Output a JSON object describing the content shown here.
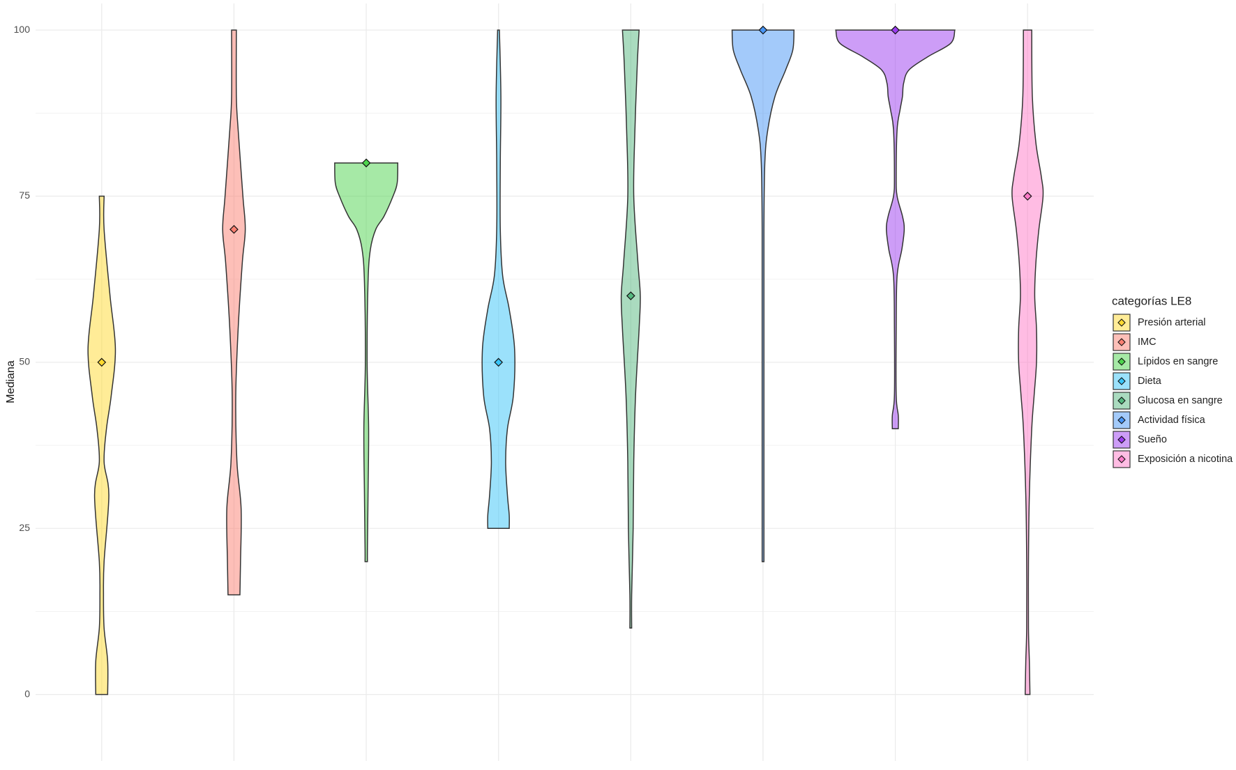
{
  "chart_data": {
    "type": "violin",
    "y_label": "Mediana",
    "legend_title": "categorías LE8",
    "legend_position": "right",
    "grid": true,
    "ylim": [
      -10,
      104
    ],
    "yticks": [
      0,
      25,
      50,
      75,
      100
    ],
    "yminor": [
      12.5,
      37.5,
      62.5,
      87.5
    ],
    "series": [
      {
        "name": "Presión arterial",
        "color": "#ffd92f",
        "median": 50,
        "density": {
          "y": [
            0,
            5,
            10,
            15,
            20,
            30,
            35,
            40,
            45,
            52,
            60,
            70,
            75
          ],
          "width": [
            0.1,
            0.1,
            0.04,
            0.03,
            0.04,
            0.12,
            0.04,
            0.08,
            0.16,
            0.23,
            0.14,
            0.04,
            0.04
          ]
        }
      },
      {
        "name": "IMC",
        "color": "#fb8072",
        "median": 70,
        "density": {
          "y": [
            15,
            20,
            28,
            35,
            45,
            55,
            65,
            70,
            75,
            85,
            90,
            100
          ],
          "width": [
            0.1,
            0.11,
            0.12,
            0.05,
            0.03,
            0.07,
            0.14,
            0.19,
            0.15,
            0.07,
            0.04,
            0.04
          ]
        }
      },
      {
        "name": "Lípidos en sangre",
        "color": "#4dd44d",
        "median": 80,
        "density": {
          "y": [
            20,
            22,
            30,
            40,
            50,
            62,
            67,
            70,
            72,
            75,
            77,
            80
          ],
          "width": [
            0.02,
            0.02,
            0.03,
            0.04,
            0.015,
            0.03,
            0.07,
            0.16,
            0.3,
            0.45,
            0.52,
            0.53
          ]
        }
      },
      {
        "name": "Dieta",
        "color": "#38c4f7",
        "median": 50,
        "density": {
          "y": [
            25,
            27,
            30,
            35,
            40,
            45,
            52,
            58,
            63,
            70,
            80,
            90,
            100
          ],
          "width": [
            0.18,
            0.18,
            0.15,
            0.12,
            0.15,
            0.25,
            0.27,
            0.18,
            0.07,
            0.03,
            0.03,
            0.04,
            0.015
          ]
        }
      },
      {
        "name": "Glucosa en sangre",
        "color": "#55b880",
        "median": 60,
        "density": {
          "y": [
            10,
            15,
            25,
            35,
            45,
            55,
            60,
            65,
            75,
            85,
            95,
            100
          ],
          "width": [
            0.015,
            0.015,
            0.04,
            0.05,
            0.08,
            0.14,
            0.16,
            0.12,
            0.05,
            0.07,
            0.11,
            0.14
          ]
        }
      },
      {
        "name": "Actividad física",
        "color": "#4895f5",
        "median": 100,
        "density": {
          "y": [
            20,
            50,
            70,
            80,
            85,
            90,
            94,
            97,
            100
          ],
          "width": [
            0.015,
            0.015,
            0.015,
            0.03,
            0.08,
            0.2,
            0.38,
            0.5,
            0.52
          ]
        }
      },
      {
        "name": "Sueño",
        "color": "#9b3cf0",
        "median": 100,
        "density": {
          "y": [
            40,
            42,
            45,
            55,
            63,
            67,
            70,
            72,
            75,
            78,
            85,
            88,
            90,
            92,
            94,
            96,
            98,
            100
          ],
          "width": [
            0.05,
            0.05,
            0.015,
            0.015,
            0.03,
            0.11,
            0.15,
            0.12,
            0.03,
            0.015,
            0.03,
            0.08,
            0.12,
            0.14,
            0.23,
            0.55,
            0.93,
            1.0
          ]
        }
      },
      {
        "name": "Exposición a nicotina",
        "color": "#ff7ac8",
        "median": 75,
        "density": {
          "y": [
            0,
            5,
            10,
            20,
            30,
            40,
            45,
            50,
            55,
            60,
            65,
            70,
            75,
            78,
            83,
            90,
            100
          ],
          "width": [
            0.04,
            0.03,
            0.015,
            0.015,
            0.03,
            0.07,
            0.11,
            0.15,
            0.15,
            0.12,
            0.14,
            0.19,
            0.26,
            0.23,
            0.14,
            0.08,
            0.07
          ]
        }
      }
    ]
  }
}
